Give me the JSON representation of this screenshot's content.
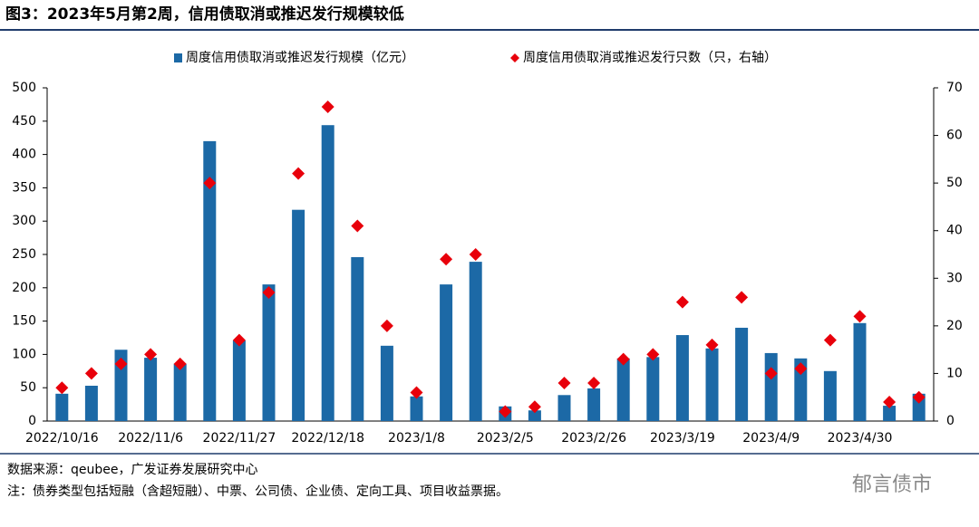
{
  "chart_data": {
    "type": "bar",
    "title": "图3：2023年5月第2周，信用债取消或推迟发行规模较低",
    "categories": [
      "2022/10/16",
      null,
      null,
      "2022/11/6",
      null,
      null,
      "2022/11/27",
      null,
      null,
      "2022/12/18",
      null,
      null,
      "2023/1/8",
      null,
      null,
      "2023/2/5",
      null,
      null,
      "2023/2/26",
      null,
      null,
      "2023/3/19",
      null,
      null,
      "2023/4/9",
      null,
      null,
      "2023/4/30",
      null,
      null
    ],
    "series": [
      {
        "name": "周度信用债取消或推迟发行规模（亿元）",
        "type": "bar",
        "color": "#1c69a6",
        "values": [
          41,
          53,
          107,
          95,
          86,
          420,
          121,
          205,
          317,
          444,
          246,
          113,
          37,
          205,
          239,
          22,
          16,
          39,
          49,
          94,
          96,
          129,
          109,
          140,
          102,
          94,
          75,
          147,
          23,
          41
        ]
      },
      {
        "name": "周度信用债取消或推迟发行只数（只，右轴）",
        "type": "scatter",
        "axis": "y2",
        "color": "#e8000b",
        "values": [
          7,
          10,
          12,
          14,
          12,
          50,
          17,
          27,
          52,
          66,
          41,
          20,
          6,
          34,
          35,
          2,
          3,
          8,
          8,
          13,
          14,
          25,
          16,
          26,
          10,
          11,
          17,
          22,
          4,
          5
        ]
      }
    ],
    "ylim": [
      0,
      500
    ],
    "yticks": [
      0,
      50,
      100,
      150,
      200,
      250,
      300,
      350,
      400,
      450,
      500
    ],
    "y2lim": [
      0,
      70
    ],
    "y2ticks": [
      0,
      10,
      20,
      30,
      40,
      50,
      60,
      70
    ],
    "legend": "top",
    "source": "数据来源：qeubee，广发证券发展研究中心",
    "note": "注：债券类型包括短融（含超短融）、中票、公司债、企业债、定向工具、项目收益票据。",
    "watermark": "郁言债市"
  }
}
